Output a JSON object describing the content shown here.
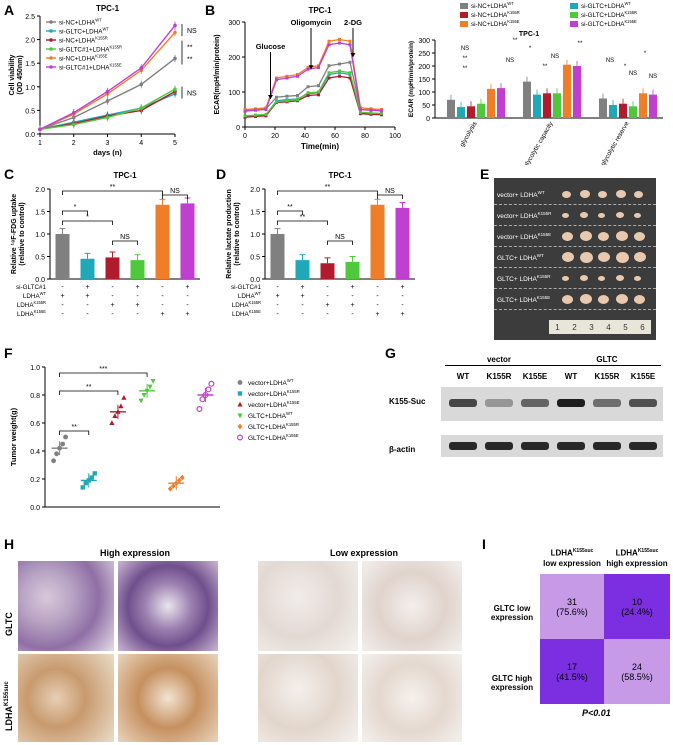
{
  "panels": {
    "A": {
      "letter": "A"
    },
    "B": {
      "letter": "B"
    },
    "C": {
      "letter": "C"
    },
    "D": {
      "letter": "D"
    },
    "E": {
      "letter": "E"
    },
    "F": {
      "letter": "F"
    },
    "G": {
      "letter": "G"
    },
    "H": {
      "letter": "H"
    },
    "I": {
      "letter": "I"
    }
  },
  "colors": {
    "gray": "#808080",
    "teal": "#1fa8b8",
    "red": "#b01c2e",
    "green": "#4fc83c",
    "orange": "#f07d28",
    "magenta": "#c13fd0",
    "purple_dark": "#7b2fe0",
    "purple_light": "#c79ae8"
  },
  "chart_data": [
    {
      "id": "A",
      "type": "line",
      "title": "TPC-1",
      "xlabel": "days (n)",
      "ylabel": "Cell viability\n(OD 450nm)",
      "xlim": [
        1,
        5
      ],
      "ylim": [
        0.0,
        2.5
      ],
      "xticks": [
        "1",
        "2",
        "3",
        "4",
        "5"
      ],
      "yticks": [
        "0.0",
        "0.5",
        "1.0",
        "1.5",
        "2.0",
        "2.5"
      ],
      "x": [
        1,
        2,
        3,
        4,
        5
      ],
      "series": [
        {
          "name": "si-NC+LDHA",
          "sup": "WT",
          "color": "gray",
          "values": [
            0.1,
            0.35,
            0.7,
            1.05,
            1.6
          ]
        },
        {
          "name": "si-GLTC+LDHA",
          "sup": "WT",
          "color": "teal",
          "values": [
            0.1,
            0.25,
            0.4,
            0.55,
            0.85
          ]
        },
        {
          "name": "si-NC+LDHA",
          "sup": "K155R",
          "color": "red",
          "values": [
            0.1,
            0.22,
            0.38,
            0.5,
            0.9
          ]
        },
        {
          "name": "si-GLTC#1+LDHA",
          "sup": "K155R",
          "color": "green",
          "values": [
            0.1,
            0.2,
            0.35,
            0.55,
            0.95
          ]
        },
        {
          "name": "si-NC+LDHA",
          "sup": "K155E",
          "color": "orange",
          "values": [
            0.1,
            0.42,
            0.85,
            1.35,
            2.15
          ]
        },
        {
          "name": "si-GLTC#1+LDHA",
          "sup": "K155E",
          "color": "magenta",
          "values": [
            0.1,
            0.45,
            0.9,
            1.4,
            2.3
          ]
        }
      ],
      "annotations": [
        "NS",
        "**",
        "**",
        "NS"
      ]
    },
    {
      "id": "B1",
      "type": "line",
      "title": "TPC-1",
      "xlabel": "Time(min)",
      "ylabel": "ECAR(mpH/min/protein)",
      "xlim": [
        0,
        100
      ],
      "ylim": [
        0,
        300
      ],
      "xticks": [
        "0",
        "20",
        "40",
        "60",
        "80",
        "100"
      ],
      "yticks": [
        "0",
        "100",
        "200",
        "300"
      ],
      "x": [
        0,
        7,
        14,
        21,
        28,
        35,
        42,
        49,
        56,
        63,
        70,
        77,
        84,
        91
      ],
      "events": [
        {
          "label": "Glucose",
          "x": 17
        },
        {
          "label": "Oligomycin",
          "x": 44
        },
        {
          "label": "2-DG",
          "x": 72
        }
      ],
      "series": [
        {
          "color": "gray",
          "values": [
            48,
            50,
            52,
            85,
            88,
            90,
            115,
            118,
            175,
            180,
            185,
            50,
            48,
            47
          ]
        },
        {
          "color": "teal",
          "values": [
            30,
            32,
            35,
            75,
            78,
            80,
            95,
            98,
            150,
            155,
            150,
            40,
            38,
            37
          ]
        },
        {
          "color": "red",
          "values": [
            28,
            30,
            32,
            70,
            72,
            75,
            90,
            92,
            140,
            145,
            140,
            38,
            36,
            35
          ]
        },
        {
          "color": "green",
          "values": [
            32,
            34,
            36,
            72,
            75,
            78,
            98,
            100,
            155,
            160,
            155,
            42,
            40,
            39
          ]
        },
        {
          "color": "orange",
          "values": [
            50,
            52,
            55,
            140,
            145,
            150,
            170,
            175,
            245,
            250,
            245,
            55,
            52,
            50
          ]
        },
        {
          "color": "magenta",
          "values": [
            45,
            48,
            50,
            135,
            140,
            145,
            165,
            170,
            235,
            240,
            235,
            50,
            48,
            46
          ]
        }
      ]
    },
    {
      "id": "B2",
      "type": "bar",
      "title": "TPC-1",
      "ylabel": "ECAR (mpH/min/protein)",
      "ylim": [
        0,
        300
      ],
      "yticks": [
        "0",
        "50",
        "100",
        "150",
        "200",
        "250",
        "300"
      ],
      "categories": [
        "glycolysis",
        "glycolytic capacity",
        "glycolytic reserve"
      ],
      "legend": [
        {
          "name": "si-NC+LDHA",
          "sup": "WT",
          "color": "gray"
        },
        {
          "name": "si-GLTC+LDHA",
          "sup": "WT",
          "color": "teal"
        },
        {
          "name": "si-NC+LDHA",
          "sup": "K155R",
          "color": "red"
        },
        {
          "name": "si-GLTC+LDHA",
          "sup": "K155R",
          "color": "green"
        },
        {
          "name": "si-NC+LDHA",
          "sup": "K155E",
          "color": "orange"
        },
        {
          "name": "si-GLTC+LDHA",
          "sup": "K155E",
          "color": "magenta"
        }
      ],
      "series": [
        {
          "color": "gray",
          "values": [
            70,
            140,
            75
          ]
        },
        {
          "color": "teal",
          "values": [
            42,
            90,
            50
          ]
        },
        {
          "color": "red",
          "values": [
            45,
            95,
            55
          ]
        },
        {
          "color": "green",
          "values": [
            55,
            95,
            45
          ]
        },
        {
          "color": "orange",
          "values": [
            112,
            205,
            95
          ]
        },
        {
          "color": "magenta",
          "values": [
            115,
            200,
            90
          ]
        }
      ],
      "annotations": [
        "NS",
        "**",
        "**",
        "NS",
        "**",
        "*",
        "NS",
        "**",
        "**",
        "NS",
        "*",
        "NS",
        "*",
        "NS"
      ]
    },
    {
      "id": "C",
      "type": "bar",
      "title": "TPC-1",
      "ylabel": "Relative ¹⁸F-FDG uptake\n(relative to control)",
      "ylim": [
        0,
        2.0
      ],
      "yticks": [
        "0.0",
        "0.5",
        "1.0",
        "1.5",
        "2.0"
      ],
      "values": [
        1.0,
        0.45,
        0.48,
        0.42,
        1.65,
        1.68
      ],
      "colors": [
        "gray",
        "teal",
        "red",
        "green",
        "orange",
        "magenta"
      ],
      "rows": [
        {
          "label": "si-GLTC#1",
          "marks": [
            "-",
            "+",
            "-",
            "+",
            "-",
            "+"
          ]
        },
        {
          "label": "LDHA",
          "sup": "WT",
          "marks": [
            "+",
            "+",
            "-",
            "-",
            "-",
            "-"
          ]
        },
        {
          "label": "LDHA",
          "sup": "K155R",
          "marks": [
            "-",
            "-",
            "+",
            "+",
            "-",
            "-"
          ]
        },
        {
          "label": "LDHA",
          "sup": "K155E",
          "marks": [
            "-",
            "-",
            "-",
            "-",
            "+",
            "+"
          ]
        }
      ],
      "annotations": [
        "**",
        "*",
        "*",
        "NS",
        "NS"
      ]
    },
    {
      "id": "D",
      "type": "bar",
      "title": "TPC-1",
      "ylabel": "Relative lactate production\n(relative to control)",
      "ylim": [
        0,
        2.0
      ],
      "yticks": [
        "0.0",
        "0.5",
        "1.0",
        "1.5",
        "2.0"
      ],
      "values": [
        1.0,
        0.42,
        0.35,
        0.38,
        1.65,
        1.58
      ],
      "colors": [
        "gray",
        "teal",
        "red",
        "green",
        "orange",
        "magenta"
      ],
      "rows": [
        {
          "label": "si-GLTC#1",
          "marks": [
            "-",
            "+",
            "-",
            "+",
            "-",
            "+"
          ]
        },
        {
          "label": "LDHA",
          "sup": "WT",
          "marks": [
            "+",
            "+",
            "-",
            "-",
            "-",
            "-"
          ]
        },
        {
          "label": "LDHA",
          "sup": "K155R",
          "marks": [
            "-",
            "-",
            "+",
            "+",
            "-",
            "-"
          ]
        },
        {
          "label": "LDHA",
          "sup": "K155E",
          "marks": [
            "-",
            "-",
            "-",
            "-",
            "+",
            "+"
          ]
        }
      ],
      "annotations": [
        "**",
        "**",
        "**",
        "NS",
        "NS"
      ]
    },
    {
      "id": "F",
      "type": "scatter",
      "ylabel": "Tumor weight(g)",
      "ylim": [
        0.0,
        1.0
      ],
      "yticks": [
        "0.0",
        "0.2",
        "0.4",
        "0.6",
        "0.8",
        "1.0"
      ],
      "groups": [
        {
          "name": "vector+LDHA",
          "sup": "WT",
          "color": "gray",
          "marker": "circle",
          "mean": 0.42,
          "points": [
            0.33,
            0.38,
            0.42,
            0.45,
            0.5
          ]
        },
        {
          "name": "vector+LDHA",
          "sup": "K155R",
          "color": "teal",
          "marker": "square",
          "mean": 0.19,
          "points": [
            0.14,
            0.17,
            0.19,
            0.21,
            0.24
          ]
        },
        {
          "name": "vector+LDHA",
          "sup": "K155E",
          "color": "red",
          "marker": "triangle",
          "mean": 0.68,
          "points": [
            0.6,
            0.65,
            0.68,
            0.72,
            0.78
          ]
        },
        {
          "name": "GLTC+LDHA",
          "sup": "WT",
          "color": "green",
          "marker": "triangle-down",
          "mean": 0.83,
          "points": [
            0.76,
            0.8,
            0.83,
            0.86,
            0.9
          ]
        },
        {
          "name": "GLTC+LDHA",
          "sup": "K155R",
          "color": "orange",
          "marker": "diamond",
          "mean": 0.17,
          "points": [
            0.13,
            0.15,
            0.17,
            0.19,
            0.21
          ]
        },
        {
          "name": "GLTC+LDHA",
          "sup": "K155E",
          "color": "magenta",
          "marker": "open-circle",
          "mean": 0.8,
          "points": [
            0.7,
            0.77,
            0.8,
            0.84,
            0.88
          ]
        }
      ],
      "annotations": [
        "***",
        "**",
        "**"
      ]
    },
    {
      "id": "I",
      "type": "heatmap",
      "col_headers": [
        {
          "text": "LDHA",
          "sup": "K155suc",
          "sub": "low expression"
        },
        {
          "text": "LDHA",
          "sup": "K155suc",
          "sub": "high expression"
        }
      ],
      "row_headers": [
        "GLTC low\nexpression",
        "GLTC high\nexpression"
      ],
      "cells": [
        [
          "31",
          "(75.6%)",
          "10",
          "(24.4%)"
        ],
        [
          "17",
          "(41.5%)",
          "24",
          "(58.5%)"
        ]
      ],
      "footer": "P<0.01"
    }
  ],
  "E": {
    "rows": [
      {
        "label": "vector+ LDHA",
        "sup": "WT"
      },
      {
        "label": "vector+ LDHA",
        "sup": "K155R"
      },
      {
        "label": "vector+ LDHA",
        "sup": "K155E"
      },
      {
        "label": "GLTC+ LDHA",
        "sup": "WT"
      },
      {
        "label": "GLTC+ LDHA",
        "sup": "K155R"
      },
      {
        "label": "GLTC+ LDHA",
        "sup": "K155E"
      }
    ],
    "ruler": [
      "1",
      "2",
      "3",
      "4",
      "5",
      "6"
    ]
  },
  "G": {
    "group_labels": [
      "vector",
      "GLTC"
    ],
    "lanes": [
      "WT",
      "K155R",
      "K155E",
      "WT",
      "K155R",
      "K155E"
    ],
    "bands": [
      {
        "label": "K155-Suc",
        "intensity": [
          0.75,
          0.35,
          0.6,
          0.95,
          0.55,
          0.7
        ]
      },
      {
        "label": "β-actin",
        "intensity": [
          0.9,
          0.9,
          0.9,
          0.9,
          0.9,
          0.9
        ]
      }
    ]
  },
  "H": {
    "col_titles": [
      "High expression",
      "Low expression"
    ],
    "row_labels": [
      {
        "text": "GLTC",
        "sup": ""
      },
      {
        "text": "LDHA",
        "sup": "K155suc"
      }
    ]
  }
}
